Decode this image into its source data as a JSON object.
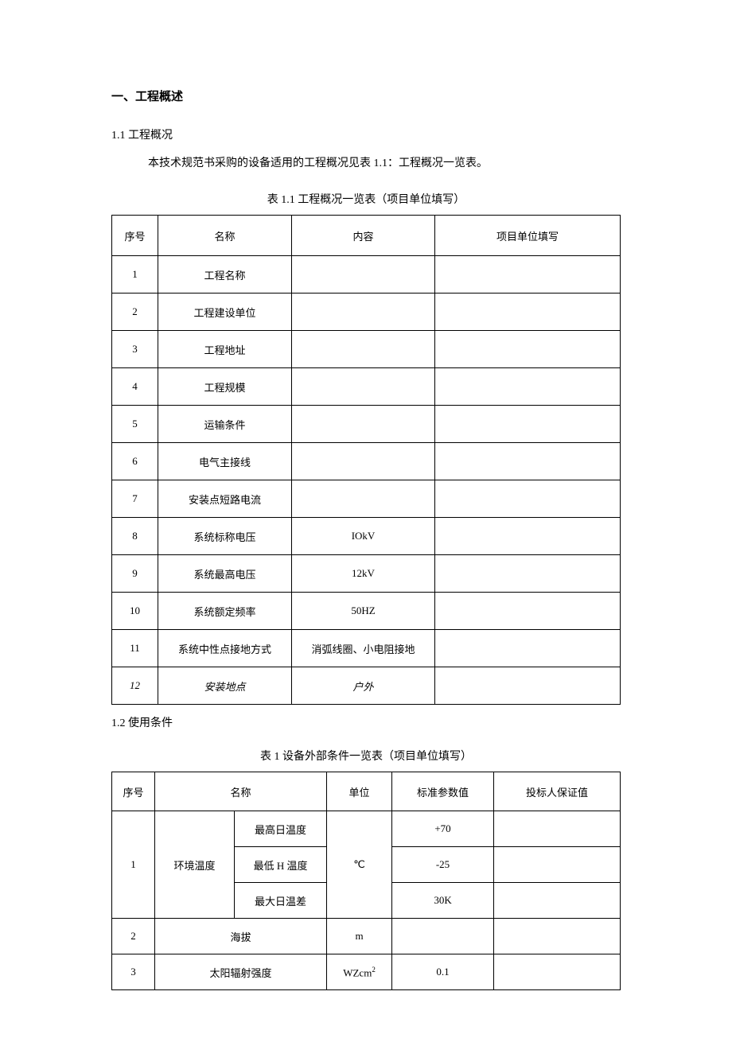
{
  "heading": "一、工程概述",
  "section_1_1": {
    "number": "1.1  工程概况",
    "body": "本技术规范书采购的设备适用的工程概况见表 1.1：工程概况一览表。"
  },
  "table1": {
    "caption": "表 1.1 工程概况一览表（项目单位填写）",
    "headers": {
      "seq": "序号",
      "name": "名称",
      "content": "内容",
      "fill": "项目单位填写"
    },
    "rows": [
      {
        "seq": "1",
        "name": "工程名称",
        "content": "",
        "fill": ""
      },
      {
        "seq": "2",
        "name": "工程建设单位",
        "content": "",
        "fill": ""
      },
      {
        "seq": "3",
        "name": "工程地址",
        "content": "",
        "fill": ""
      },
      {
        "seq": "4",
        "name": "工程规模",
        "content": "",
        "fill": ""
      },
      {
        "seq": "5",
        "name": "运输条件",
        "content": "",
        "fill": ""
      },
      {
        "seq": "6",
        "name": "电气主接线",
        "content": "",
        "fill": ""
      },
      {
        "seq": "7",
        "name": "安装点短路电流",
        "content": "",
        "fill": ""
      },
      {
        "seq": "8",
        "name": "系统标称电压",
        "content": "IOkV",
        "fill": ""
      },
      {
        "seq": "9",
        "name": "系统最高电压",
        "content": "12kV",
        "fill": ""
      },
      {
        "seq": "10",
        "name": "系统额定频率",
        "content": "50HZ",
        "fill": ""
      },
      {
        "seq": "11",
        "name": "系统中性点接地方式",
        "content": "消弧线圈、小电阻接地",
        "fill": ""
      },
      {
        "seq": "12",
        "name": "安装地点",
        "content": "户外",
        "fill": ""
      }
    ]
  },
  "section_1_2": {
    "number": "1.2  使用条件"
  },
  "table2": {
    "caption": "表 1 设备外部条件一览表（项目单位填写）",
    "headers": {
      "seq": "序号",
      "name": "名称",
      "unit": "单位",
      "std": "标准参数值",
      "guar": "投标人保证值"
    },
    "row1": {
      "seq": "1",
      "group": "环境温度",
      "unit": "℃",
      "subs": [
        {
          "label": "最高日温度",
          "std": "+70",
          "guar": ""
        },
        {
          "label": "最低 H 温度",
          "std": "-25",
          "guar": ""
        },
        {
          "label": "最大日温差",
          "std": "30K",
          "guar": ""
        }
      ]
    },
    "row2": {
      "seq": "2",
      "name": "海拔",
      "unit": "m",
      "std": "",
      "guar": ""
    },
    "row3": {
      "seq": "3",
      "name": "太阳辐射强度",
      "unit_prefix": "WZcm",
      "unit_sup": "2",
      "std": "0.1",
      "guar": ""
    }
  }
}
